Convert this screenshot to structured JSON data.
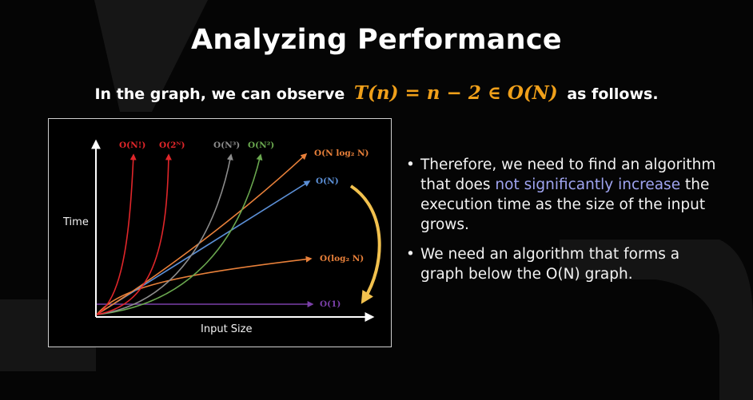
{
  "slide": {
    "title": "Analyzing Performance",
    "subtitle_prefix": "In the graph, we can observe",
    "subtitle_formula": "T(n) = n − 2 ∈ O(N)",
    "subtitle_suffix": "as follows."
  },
  "graph": {
    "y_label": "Time",
    "x_label": "Input Size",
    "curves": {
      "fact": {
        "label": "O(N!)",
        "color": "#e0262a"
      },
      "exp": {
        "label": "O(2ᴺ)",
        "color": "#e0262a"
      },
      "cubic": {
        "label": "O(N³)",
        "color": "#8c8c8c"
      },
      "quad": {
        "label": "O(N²)",
        "color": "#6aa84f"
      },
      "nlogn": {
        "label": "O(N log₂ N)",
        "color": "#e8803a"
      },
      "lin": {
        "label": "O(N)",
        "color": "#5b8fd6"
      },
      "logn": {
        "label": "O(log₂ N)",
        "color": "#e8803a"
      },
      "const": {
        "label": "O(1)",
        "color": "#7a3fa8"
      }
    },
    "arrow_color": "#f2c14e"
  },
  "bullets": [
    {
      "before": "Therefore, we need to find an algorithm that does ",
      "highlight": "not significantly increase",
      "after": " the execution time as the size of the input grows."
    },
    {
      "text": "We need an algorithm that forms a graph below the O(N) graph."
    }
  ]
}
